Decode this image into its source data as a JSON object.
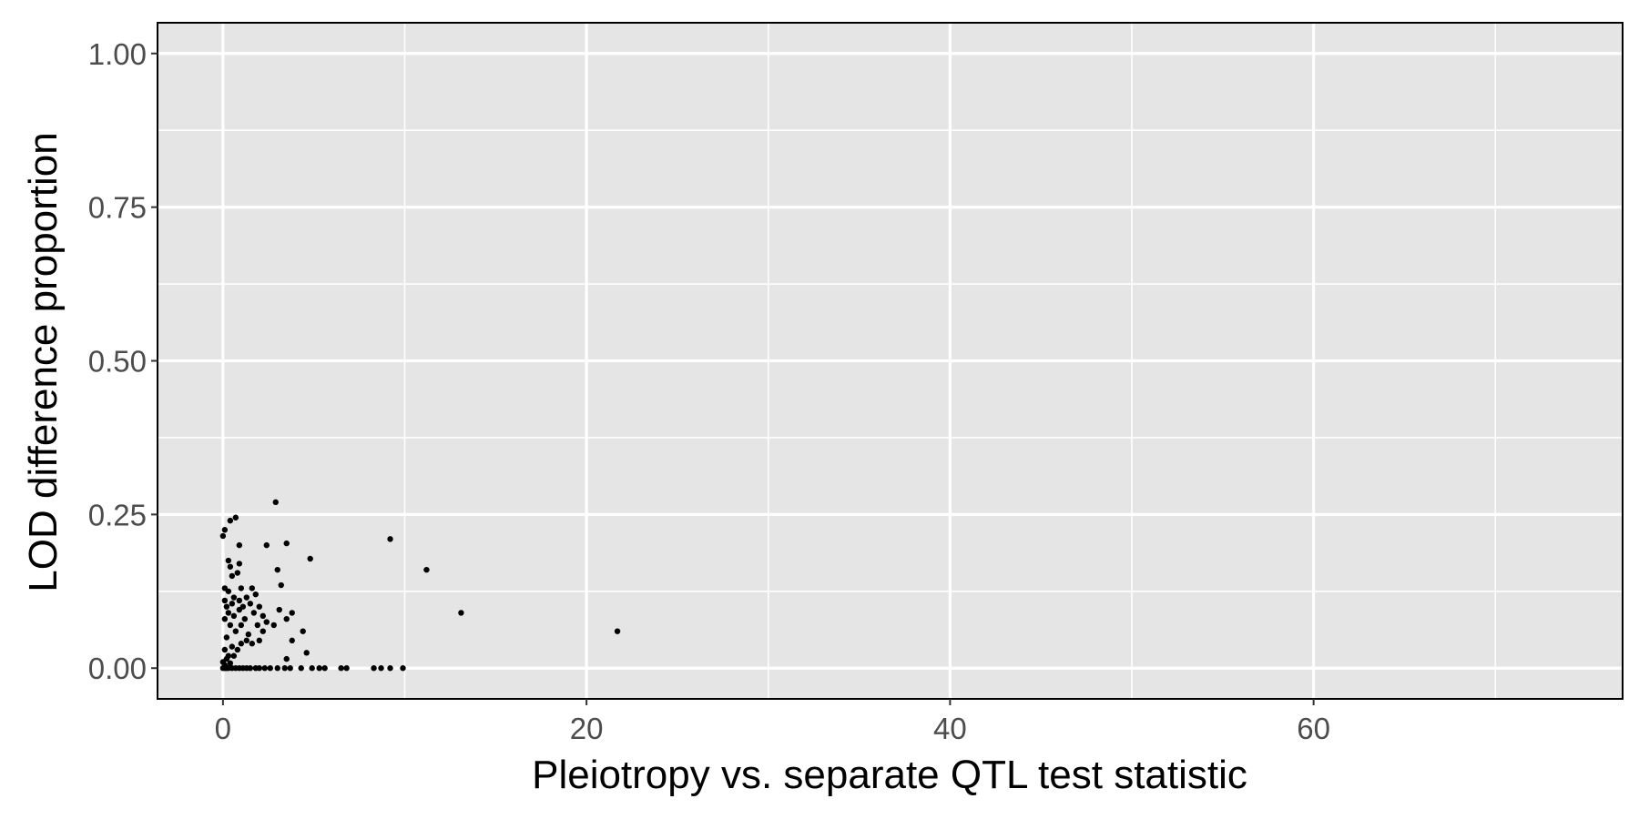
{
  "chart_data": {
    "type": "scatter",
    "title": "",
    "xlabel": "Pleiotropy vs. separate QTL test statistic",
    "ylabel": "LOD difference proportion",
    "xlim": [
      -3.6,
      77
    ],
    "ylim": [
      -0.05,
      1.05
    ],
    "x_ticks": [
      0,
      20,
      40,
      60
    ],
    "x_tick_labels": [
      "0",
      "20",
      "40",
      "60"
    ],
    "x_minor_ticks": [
      10,
      30,
      50,
      70
    ],
    "y_ticks": [
      0,
      0.25,
      0.5,
      0.75,
      1.0
    ],
    "y_tick_labels": [
      "0.00",
      "0.25",
      "0.50",
      "0.75",
      "1.00"
    ],
    "y_minor_ticks": [
      0.125,
      0.375,
      0.625,
      0.875
    ],
    "grid": true,
    "legend": "none",
    "colors": {
      "panel": "#e5e5e5",
      "grid": "#ffffff",
      "point": "#000000",
      "tick_label": "#4d4d4d"
    },
    "series": [
      {
        "points": [
          [
            0.0,
            0.0
          ],
          [
            0.1,
            0.0
          ],
          [
            0.2,
            0.0
          ],
          [
            0.3,
            0.0
          ],
          [
            0.5,
            0.0
          ],
          [
            0.7,
            0.0
          ],
          [
            0.9,
            0.0
          ],
          [
            1.1,
            0.0
          ],
          [
            1.3,
            0.0
          ],
          [
            1.5,
            0.0
          ],
          [
            1.8,
            0.0
          ],
          [
            2.0,
            0.0
          ],
          [
            2.3,
            0.0
          ],
          [
            2.6,
            0.0
          ],
          [
            3.0,
            0.0
          ],
          [
            3.4,
            0.0
          ],
          [
            3.7,
            0.0
          ],
          [
            4.3,
            0.0
          ],
          [
            4.9,
            0.0
          ],
          [
            5.3,
            0.0
          ],
          [
            5.6,
            0.0
          ],
          [
            6.5,
            0.0
          ],
          [
            6.8,
            0.0
          ],
          [
            8.3,
            0.0
          ],
          [
            8.7,
            0.0
          ],
          [
            9.2,
            0.0
          ],
          [
            9.9,
            0.0
          ],
          [
            0.1,
            0.005
          ],
          [
            0.4,
            0.008
          ],
          [
            0.0,
            0.01
          ],
          [
            0.2,
            0.015
          ],
          [
            0.6,
            0.02
          ],
          [
            0.3,
            0.02
          ],
          [
            0.1,
            0.03
          ],
          [
            0.5,
            0.035
          ],
          [
            0.8,
            0.03
          ],
          [
            1.0,
            0.04
          ],
          [
            1.3,
            0.045
          ],
          [
            1.6,
            0.04
          ],
          [
            2.0,
            0.045
          ],
          [
            0.2,
            0.05
          ],
          [
            0.7,
            0.06
          ],
          [
            1.4,
            0.055
          ],
          [
            2.2,
            0.06
          ],
          [
            0.4,
            0.07
          ],
          [
            1.0,
            0.07
          ],
          [
            1.9,
            0.07
          ],
          [
            0.1,
            0.08
          ],
          [
            0.6,
            0.085
          ],
          [
            1.2,
            0.08
          ],
          [
            2.4,
            0.075
          ],
          [
            2.8,
            0.07
          ],
          [
            0.3,
            0.09
          ],
          [
            0.9,
            0.095
          ],
          [
            1.7,
            0.09
          ],
          [
            2.2,
            0.085
          ],
          [
            3.1,
            0.095
          ],
          [
            3.8,
            0.09
          ],
          [
            3.5,
            0.08
          ],
          [
            0.2,
            0.1
          ],
          [
            0.5,
            0.105
          ],
          [
            1.1,
            0.1
          ],
          [
            1.5,
            0.105
          ],
          [
            2.0,
            0.1
          ],
          [
            0.1,
            0.11
          ],
          [
            0.6,
            0.115
          ],
          [
            0.9,
            0.11
          ],
          [
            1.3,
            0.115
          ],
          [
            1.8,
            0.12
          ],
          [
            0.3,
            0.125
          ],
          [
            1.0,
            0.13
          ],
          [
            1.6,
            0.13
          ],
          [
            0.1,
            0.13
          ],
          [
            3.2,
            0.135
          ],
          [
            0.5,
            0.15
          ],
          [
            0.8,
            0.155
          ],
          [
            3.0,
            0.16
          ],
          [
            0.4,
            0.165
          ],
          [
            0.9,
            0.17
          ],
          [
            0.3,
            0.175
          ],
          [
            4.8,
            0.178
          ],
          [
            0.9,
            0.2
          ],
          [
            2.4,
            0.2
          ],
          [
            3.5,
            0.203
          ],
          [
            0.0,
            0.215
          ],
          [
            0.1,
            0.225
          ],
          [
            0.4,
            0.24
          ],
          [
            0.7,
            0.245
          ],
          [
            2.9,
            0.27
          ],
          [
            3.8,
            0.045
          ],
          [
            4.4,
            0.06
          ],
          [
            4.6,
            0.025
          ],
          [
            3.5,
            0.015
          ],
          [
            9.2,
            0.21
          ],
          [
            11.2,
            0.16
          ],
          [
            13.1,
            0.09
          ],
          [
            21.7,
            0.06
          ]
        ]
      }
    ]
  }
}
